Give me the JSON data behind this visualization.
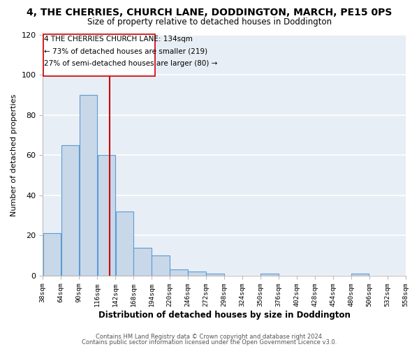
{
  "title": "4, THE CHERRIES, CHURCH LANE, DODDINGTON, MARCH, PE15 0PS",
  "subtitle": "Size of property relative to detached houses in Doddington",
  "xlabel": "Distribution of detached houses by size in Doddington",
  "ylabel": "Number of detached properties",
  "bar_color": "#c8d8e8",
  "bar_edge_color": "#5b9bd5",
  "fig_bg_color": "#ffffff",
  "ax_bg_color": "#e8eef5",
  "grid_color": "#ffffff",
  "bin_starts": [
    38,
    64,
    90,
    116,
    142,
    168,
    194,
    220,
    246,
    272,
    298,
    324,
    350,
    376,
    402,
    428,
    454,
    480,
    506,
    532
  ],
  "bin_width": 26,
  "bar_heights": [
    21,
    65,
    90,
    60,
    32,
    14,
    10,
    3,
    2,
    1,
    0,
    0,
    1,
    0,
    0,
    0,
    0,
    1,
    0,
    0
  ],
  "property_size": 134,
  "vline_color": "#cc0000",
  "ylim": [
    0,
    120
  ],
  "yticks": [
    0,
    20,
    40,
    60,
    80,
    100,
    120
  ],
  "annotation_line1": "4 THE CHERRIES CHURCH LANE: 134sqm",
  "annotation_line2": "← 73% of detached houses are smaller (219)",
  "annotation_line3": "27% of semi-detached houses are larger (80) →",
  "tick_labels": [
    "38sqm",
    "64sqm",
    "90sqm",
    "116sqm",
    "142sqm",
    "168sqm",
    "194sqm",
    "220sqm",
    "246sqm",
    "272sqm",
    "298sqm",
    "324sqm",
    "350sqm",
    "376sqm",
    "402sqm",
    "428sqm",
    "454sqm",
    "480sqm",
    "506sqm",
    "532sqm",
    "558sqm"
  ],
  "footer_line1": "Contains HM Land Registry data © Crown copyright and database right 2024.",
  "footer_line2": "Contains public sector information licensed under the Open Government Licence v3.0."
}
